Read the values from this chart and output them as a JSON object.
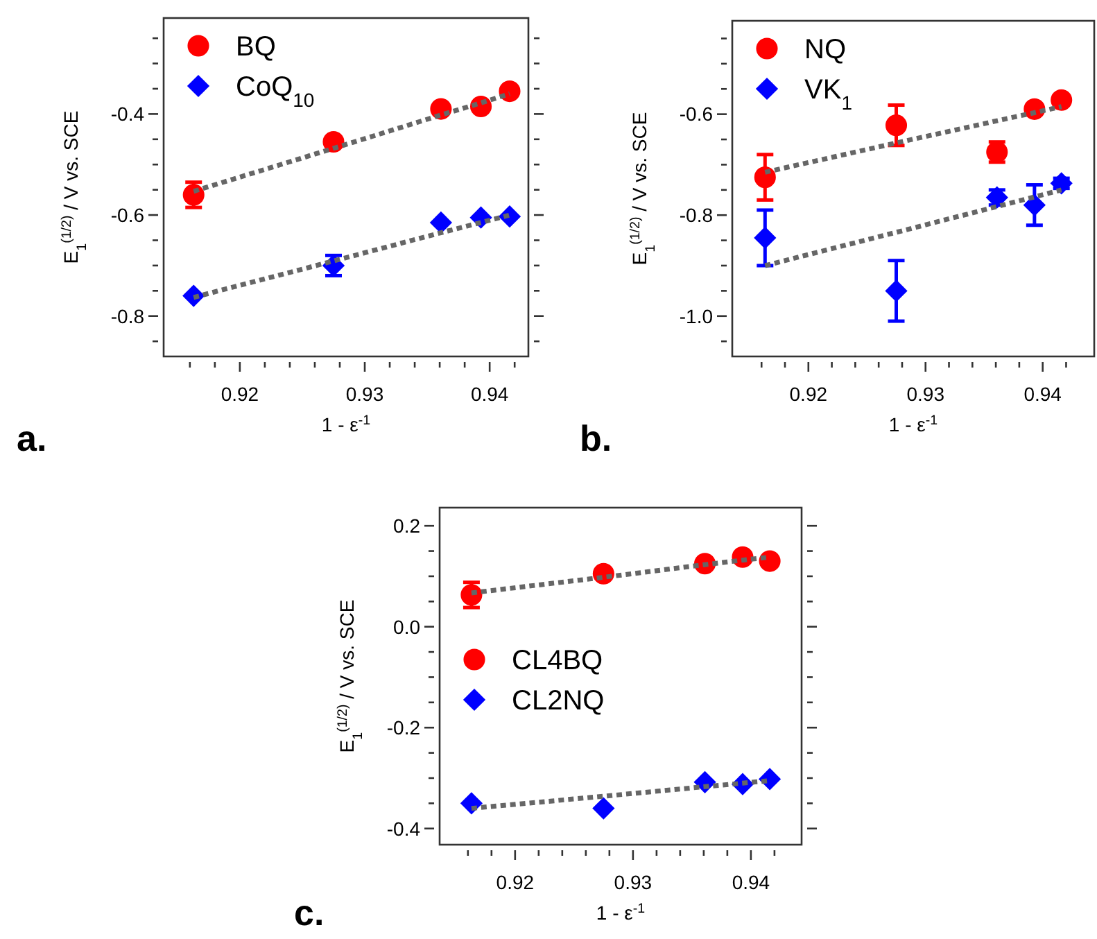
{
  "chart_data": [
    {
      "type": "scatter",
      "xlabel": "1 - ε$^{-1}$",
      "ylabel": "E$_{1}$$^{(1/2)}$  /  V vs. SCE",
      "legend": "top left",
      "annotations": [
        "a."
      ],
      "x": [
        0.9163,
        0.9275,
        0.9361,
        0.9393,
        0.9416
      ],
      "xlim": [
        0.9139,
        0.9431
      ],
      "ylim": [
        -0.88,
        -0.21
      ],
      "xticks": [
        {
          "value": 0.916,
          "label": null
        },
        {
          "value": 0.918,
          "label": null
        },
        {
          "value": 0.92,
          "label": "0.92"
        },
        {
          "value": 0.922,
          "label": null
        },
        {
          "value": 0.924,
          "label": null
        },
        {
          "value": 0.926,
          "label": null
        },
        {
          "value": 0.928,
          "label": null
        },
        {
          "value": 0.93,
          "label": "0.93"
        },
        {
          "value": 0.932,
          "label": null
        },
        {
          "value": 0.934,
          "label": null
        },
        {
          "value": 0.936,
          "label": null
        },
        {
          "value": 0.938,
          "label": null
        },
        {
          "value": 0.94,
          "label": "0.94"
        },
        {
          "value": 0.942,
          "label": null
        }
      ],
      "yticks": [
        {
          "value": -0.85,
          "label": null
        },
        {
          "value": -0.8,
          "label": "-0.8"
        },
        {
          "value": -0.75,
          "label": null
        },
        {
          "value": -0.7,
          "label": null
        },
        {
          "value": -0.65,
          "label": null
        },
        {
          "value": -0.6,
          "label": "-0.6"
        },
        {
          "value": -0.55,
          "label": null
        },
        {
          "value": -0.5,
          "label": null
        },
        {
          "value": -0.45,
          "label": null
        },
        {
          "value": -0.4,
          "label": "-0.4"
        },
        {
          "value": -0.35,
          "label": null
        },
        {
          "value": -0.3,
          "label": null
        },
        {
          "value": -0.25,
          "label": null
        }
      ],
      "series": [
        {
          "name": "BQ",
          "color": "#ff0000",
          "marker": "circle",
          "values": [
            -0.56,
            -0.455,
            -0.39,
            -0.385,
            -0.355
          ],
          "errors": [
            0.025,
            null,
            null,
            null,
            null
          ]
        },
        {
          "name": "CoQ$_{10}$",
          "color": "#0000ff",
          "marker": "diamond",
          "values": [
            -0.76,
            -0.7,
            -0.615,
            -0.605,
            -0.603
          ],
          "errors": [
            null,
            0.02,
            null,
            null,
            null
          ]
        },
        {
          "type": "line",
          "color": "#666666",
          "line_style": "dotted",
          "values": [
            -0.553,
            -0.468,
            -0.402,
            -0.378,
            -0.36
          ]
        },
        {
          "type": "line",
          "color": "#666666",
          "line_style": "dotted",
          "values": [
            -0.763,
            -0.691,
            -0.635,
            -0.615,
            -0.6
          ]
        }
      ]
    },
    {
      "type": "scatter",
      "xlabel": "1 - ε$^{-1}$",
      "ylabel": "E$_{1}$$^{(1/2)}$  /  V vs. SCE",
      "legend": "top left",
      "annotations": [
        "b."
      ],
      "x": [
        0.9163,
        0.9275,
        0.9361,
        0.9393,
        0.9416
      ],
      "xlim": [
        0.9135,
        0.9444
      ],
      "ylim": [
        -1.08,
        -0.415
      ],
      "xticks": [
        {
          "value": 0.916,
          "label": null
        },
        {
          "value": 0.918,
          "label": null
        },
        {
          "value": 0.92,
          "label": "0.92"
        },
        {
          "value": 0.922,
          "label": null
        },
        {
          "value": 0.924,
          "label": null
        },
        {
          "value": 0.926,
          "label": null
        },
        {
          "value": 0.928,
          "label": null
        },
        {
          "value": 0.93,
          "label": "0.93"
        },
        {
          "value": 0.932,
          "label": null
        },
        {
          "value": 0.934,
          "label": null
        },
        {
          "value": 0.936,
          "label": null
        },
        {
          "value": 0.938,
          "label": null
        },
        {
          "value": 0.94,
          "label": "0.94"
        },
        {
          "value": 0.942,
          "label": null
        }
      ],
      "yticks": [
        {
          "value": -1.05,
          "label": null
        },
        {
          "value": -1.0,
          "label": "-1.0"
        },
        {
          "value": -0.95,
          "label": null
        },
        {
          "value": -0.9,
          "label": null
        },
        {
          "value": -0.85,
          "label": null
        },
        {
          "value": -0.8,
          "label": "-0.8"
        },
        {
          "value": -0.75,
          "label": null
        },
        {
          "value": -0.7,
          "label": null
        },
        {
          "value": -0.65,
          "label": null
        },
        {
          "value": -0.6,
          "label": "-0.6"
        },
        {
          "value": -0.55,
          "label": null
        },
        {
          "value": -0.5,
          "label": null
        },
        {
          "value": -0.45,
          "label": null
        }
      ],
      "series": [
        {
          "name": "NQ",
          "color": "#ff0000",
          "marker": "circle",
          "values": [
            -0.725,
            -0.622,
            -0.675,
            -0.59,
            -0.572
          ],
          "errors": [
            0.045,
            0.04,
            0.02,
            0.01,
            null
          ]
        },
        {
          "name": "VK$_{1}$",
          "color": "#0000ff",
          "marker": "diamond",
          "values": [
            -0.845,
            -0.95,
            -0.765,
            -0.78,
            -0.737
          ],
          "errors": [
            0.055,
            0.06,
            0.015,
            0.04,
            0.01
          ]
        },
        {
          "type": "line",
          "color": "#666666",
          "line_style": "dotted",
          "values": [
            -0.715,
            -0.657,
            -0.613,
            -0.597,
            -0.585
          ]
        },
        {
          "type": "line",
          "color": "#666666",
          "line_style": "dotted",
          "values": [
            -0.9,
            -0.834,
            -0.783,
            -0.764,
            -0.75
          ]
        }
      ]
    },
    {
      "type": "scatter",
      "xlabel": "1 - ε$^{-1}$",
      "ylabel": "E$_{1}$$^{(1/2)}$  /  V vs. SCE",
      "legend": "left",
      "annotations": [
        "c."
      ],
      "x": [
        0.9163,
        0.9275,
        0.9361,
        0.9393,
        0.9416
      ],
      "xlim": [
        0.9136,
        0.9443
      ],
      "ylim": [
        -0.432,
        0.236
      ],
      "xticks": [
        {
          "value": 0.916,
          "label": null
        },
        {
          "value": 0.918,
          "label": null
        },
        {
          "value": 0.92,
          "label": "0.92"
        },
        {
          "value": 0.922,
          "label": null
        },
        {
          "value": 0.924,
          "label": null
        },
        {
          "value": 0.926,
          "label": null
        },
        {
          "value": 0.928,
          "label": null
        },
        {
          "value": 0.93,
          "label": "0.93"
        },
        {
          "value": 0.932,
          "label": null
        },
        {
          "value": 0.934,
          "label": null
        },
        {
          "value": 0.936,
          "label": null
        },
        {
          "value": 0.938,
          "label": null
        },
        {
          "value": 0.94,
          "label": "0.94"
        },
        {
          "value": 0.942,
          "label": null
        }
      ],
      "yticks": [
        {
          "value": -0.4,
          "label": "-0.4"
        },
        {
          "value": -0.35,
          "label": null
        },
        {
          "value": -0.3,
          "label": null
        },
        {
          "value": -0.25,
          "label": null
        },
        {
          "value": -0.2,
          "label": "-0.2"
        },
        {
          "value": -0.15,
          "label": null
        },
        {
          "value": -0.1,
          "label": null
        },
        {
          "value": -0.05,
          "label": null
        },
        {
          "value": 0.0,
          "label": "0.0"
        },
        {
          "value": 0.05,
          "label": null
        },
        {
          "value": 0.1,
          "label": null
        },
        {
          "value": 0.15,
          "label": null
        },
        {
          "value": 0.2,
          "label": "0.2"
        }
      ],
      "series": [
        {
          "name": "CL4BQ",
          "color": "#ff0000",
          "marker": "circle",
          "values": [
            0.063,
            0.105,
            0.125,
            0.138,
            0.13
          ],
          "errors": [
            0.025,
            null,
            null,
            null,
            null
          ]
        },
        {
          "name": "CL2NQ",
          "color": "#0000ff",
          "marker": "diamond",
          "values": [
            -0.35,
            -0.36,
            -0.308,
            -0.312,
            -0.302
          ]
        },
        {
          "type": "line",
          "color": "#666666",
          "line_style": "dotted",
          "values": [
            0.067,
            0.098,
            0.123,
            0.132,
            0.138
          ]
        },
        {
          "type": "line",
          "color": "#666666",
          "line_style": "dotted",
          "values": [
            -0.36,
            -0.336,
            -0.317,
            -0.31,
            -0.305
          ]
        }
      ]
    }
  ]
}
